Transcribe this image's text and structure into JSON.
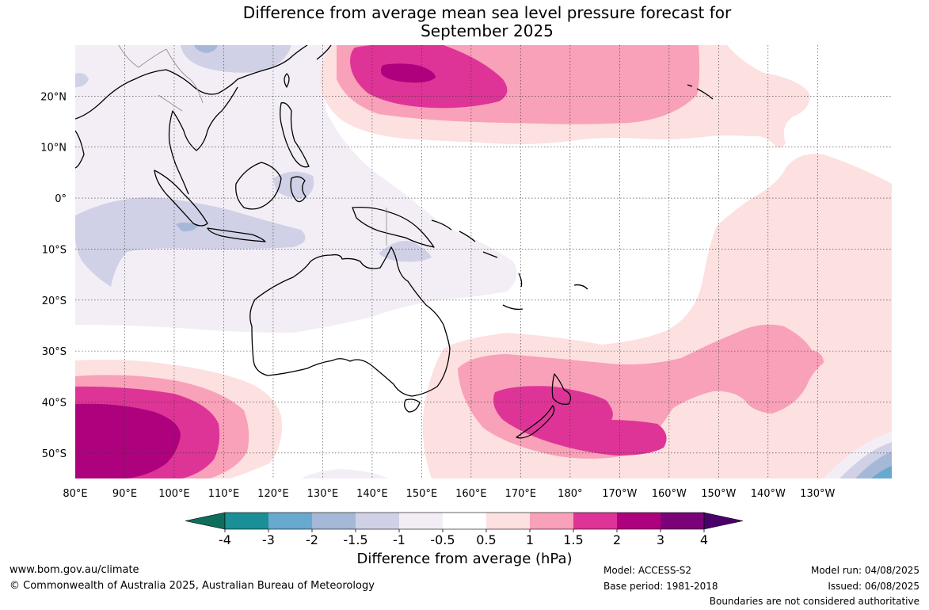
{
  "title": {
    "line1": "Difference from average mean sea level pressure forecast for",
    "line2": "September 2025"
  },
  "map": {
    "lon_range": [
      80,
      245
    ],
    "lat_range": [
      -55,
      30
    ],
    "lon_ticks": [
      "80°E",
      "90°E",
      "100°E",
      "110°E",
      "120°E",
      "130°E",
      "140°E",
      "150°E",
      "160°E",
      "170°E",
      "180°",
      "170°W",
      "160°W",
      "150°W",
      "140°W",
      "130°W"
    ],
    "lat_ticks": [
      "20°N",
      "10°N",
      "0°",
      "10°S",
      "20°S",
      "30°S",
      "40°S",
      "50°S"
    ],
    "regions_shown": [
      "Indian Ocean",
      "Maritime Continent",
      "Australia",
      "New Zealand",
      "South Pacific",
      "North Pacific"
    ]
  },
  "colorbar": {
    "ticks": [
      "-4",
      "-3",
      "-2",
      "-1.5",
      "-1",
      "-0.5",
      "0.5",
      "1",
      "1.5",
      "2",
      "3",
      "4"
    ],
    "colors": [
      "#0e6e5d",
      "#1b8f96",
      "#68a9cf",
      "#a5b8d8",
      "#d0d1e6",
      "#f3eef6",
      "#ffffff",
      "#fde0e0",
      "#f8a1b9",
      "#de3497",
      "#ae017e",
      "#7a0177",
      "#49006a"
    ],
    "label": "Difference from average (hPa)"
  },
  "footer": {
    "website": "www.bom.gov.au/climate",
    "copyright": "© Commonwealth of Australia 2025, Australian Bureau of Meteorology",
    "model": "Model: ACCESS-S2",
    "base_period": "Base period: 1981-2018",
    "model_run": "Model run: 04/08/2025",
    "issued": "Issued: 06/08/2025",
    "disclaimer": "Boundaries are not considered authoritative"
  }
}
